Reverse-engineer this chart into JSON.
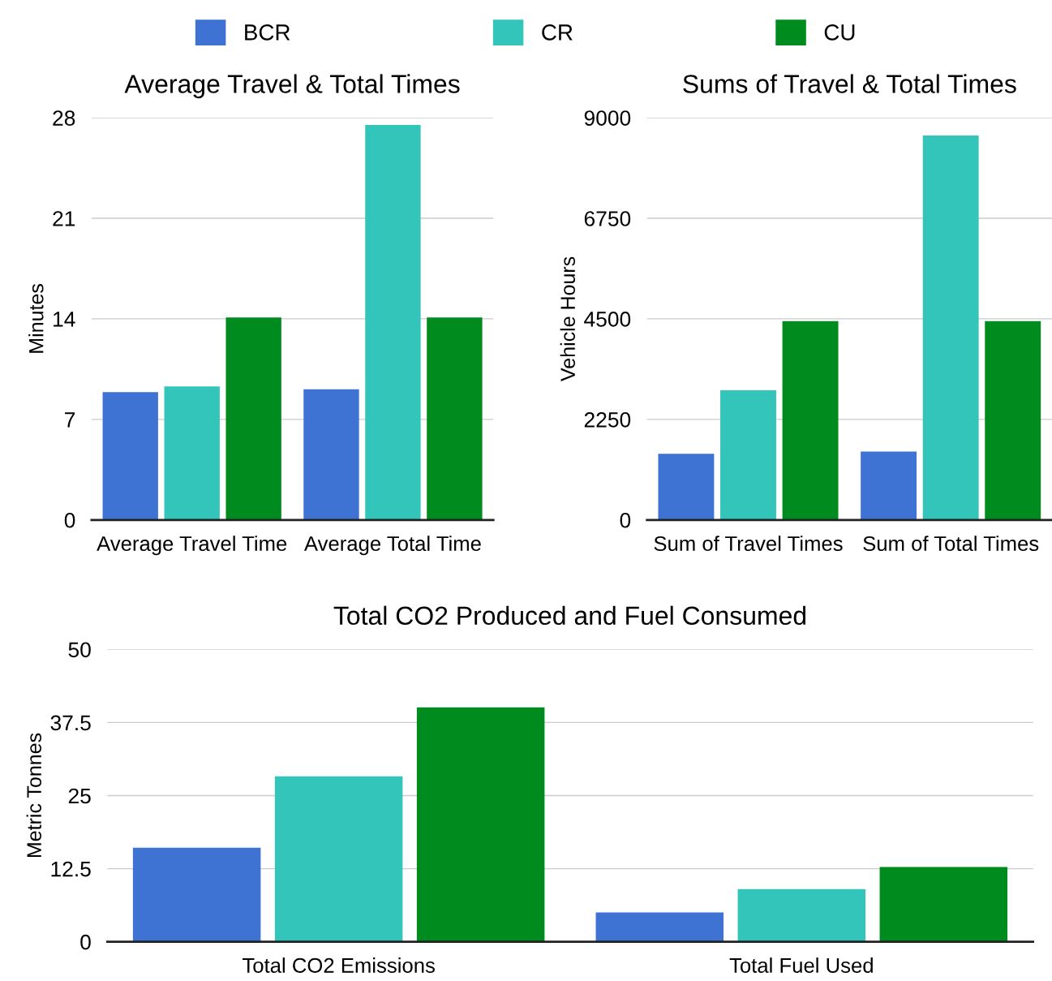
{
  "chart_data": [
    {
      "type": "bar",
      "title": "Average Travel & Total Times",
      "ylabel": "Minutes",
      "categories": [
        "Average Travel Time",
        "Average Total Time"
      ],
      "series": [
        {
          "name": "BCR",
          "color": "#3e73d3",
          "values": [
            8.9,
            9.1
          ]
        },
        {
          "name": "CR",
          "color": "#33c5b9",
          "values": [
            9.3,
            27.5
          ]
        },
        {
          "name": "CU",
          "color": "#008b1e",
          "values": [
            14.1,
            14.1
          ]
        }
      ],
      "ylim": [
        0,
        28
      ],
      "yticks": [
        0,
        7,
        14,
        21,
        28
      ],
      "grid": "y",
      "legend": "top"
    },
    {
      "type": "bar",
      "title": "Sums of Travel & Total Times",
      "ylabel": "Vehicle Hours",
      "categories": [
        "Sum of Travel Times",
        "Sum of Total Times"
      ],
      "series": [
        {
          "color": "#3e73d3",
          "values": [
            1480,
            1530
          ]
        },
        {
          "color": "#33c5b9",
          "values": [
            2900,
            8600
          ]
        },
        {
          "color": "#008b1e",
          "values": [
            4450,
            4450
          ]
        }
      ],
      "ylim": [
        0,
        9000
      ],
      "yticks": [
        0,
        2250,
        4500,
        6750,
        9000
      ],
      "grid": "y"
    },
    {
      "type": "bar",
      "title": "Total CO2 Produced and Fuel Consumed",
      "ylabel": "Metric Tonnes",
      "categories": [
        "Total CO2 Emissions",
        "Total Fuel Used"
      ],
      "series": [
        {
          "color": "#3e73d3",
          "values": [
            16.1,
            5.0
          ]
        },
        {
          "color": "#33c5b9",
          "values": [
            28.3,
            9.0
          ]
        },
        {
          "color": "#008b1e",
          "values": [
            40.1,
            12.8
          ]
        }
      ],
      "ylim": [
        0,
        50
      ],
      "yticks": [
        0,
        12.5,
        25,
        37.5,
        50
      ],
      "grid": "y"
    }
  ]
}
